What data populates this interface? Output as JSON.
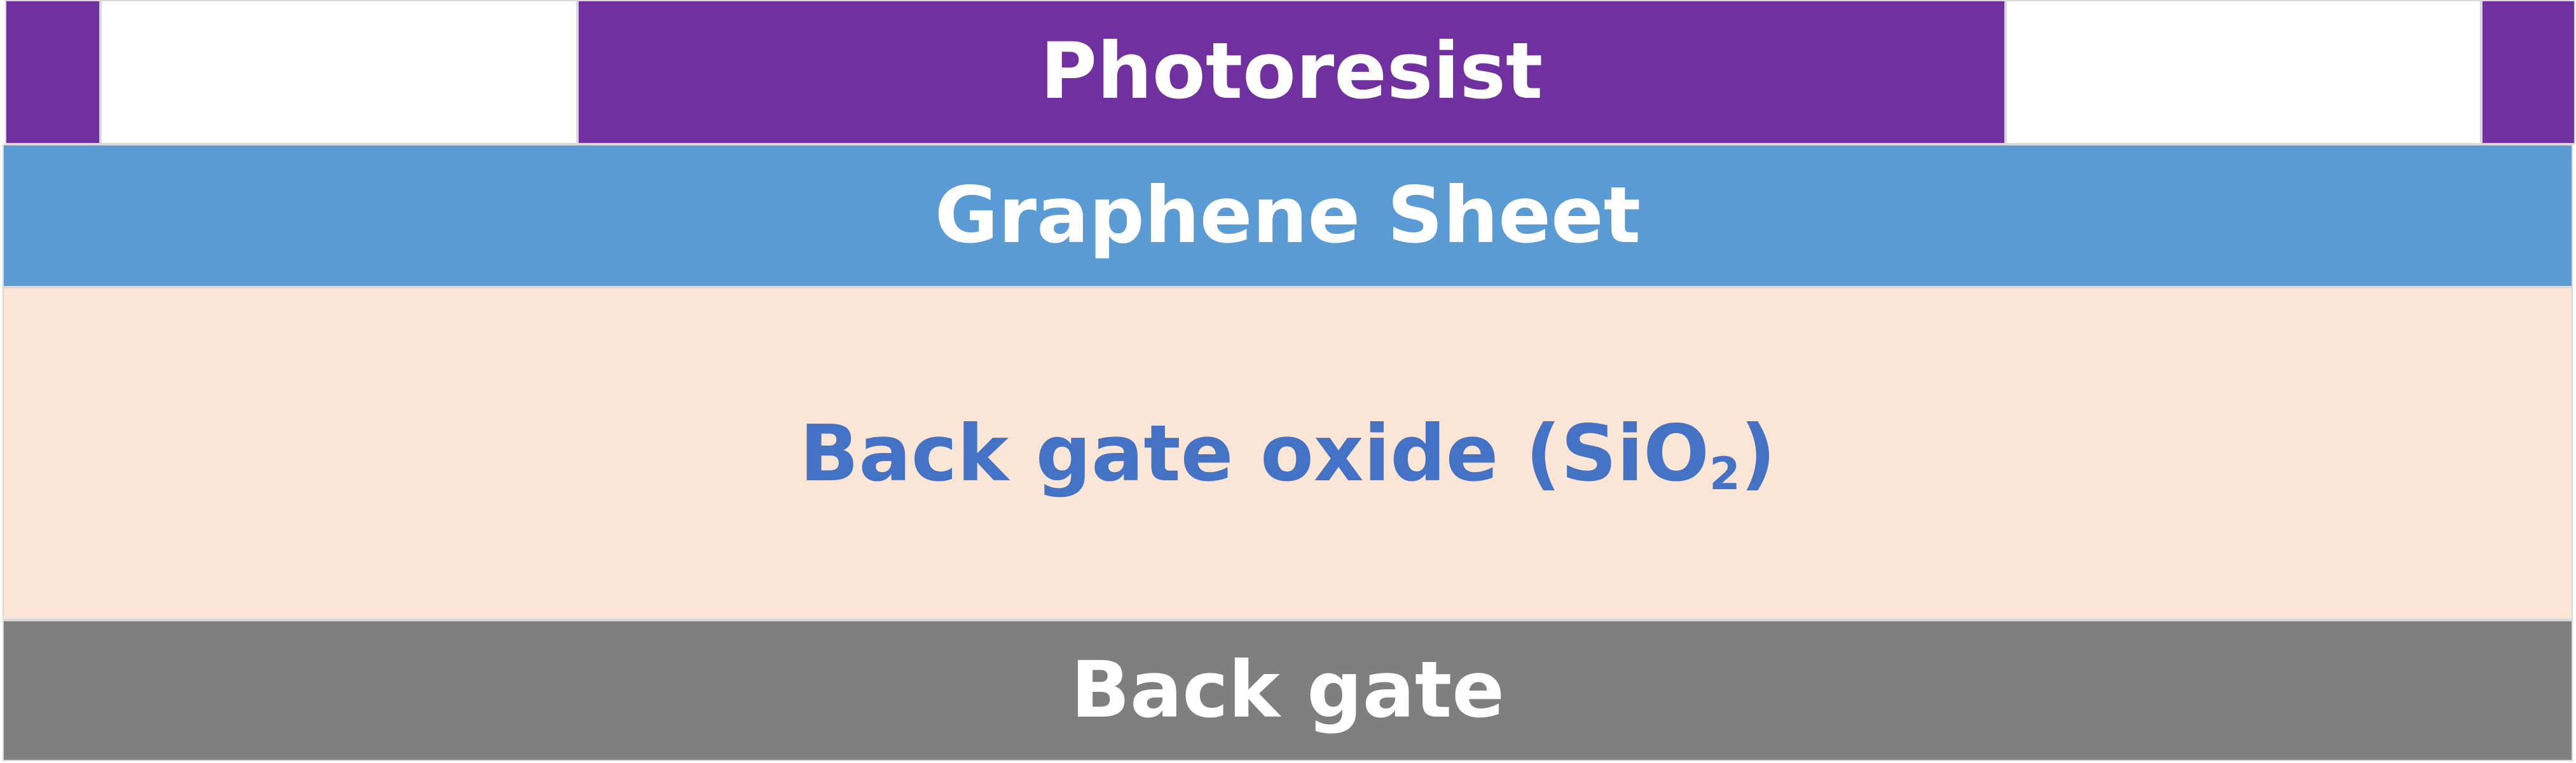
{
  "layers": {
    "photoresist": {
      "label": "Photoresist"
    },
    "graphene": {
      "label": "Graphene Sheet"
    },
    "oxide": {
      "label_main": "Back gate oxide (SiO",
      "label_subscript": "2",
      "label_close": ")"
    },
    "back_gate": {
      "label": "Back gate"
    }
  },
  "colors": {
    "photoresist": "#7030a0",
    "photoresist_gap": "#ffffff",
    "graphene": "#5b9bd5",
    "oxide": "#fbe5d6",
    "oxide_text": "#4472c4",
    "back_gate": "#7f7f7f",
    "label_text": "#ffffff"
  }
}
